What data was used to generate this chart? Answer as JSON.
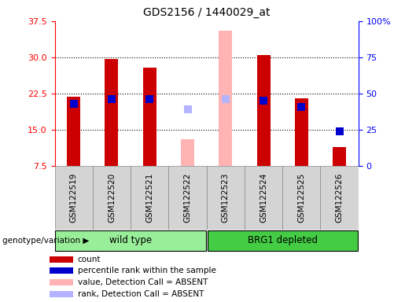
{
  "title": "GDS2156 / 1440029_at",
  "samples": [
    "GSM122519",
    "GSM122520",
    "GSM122521",
    "GSM122522",
    "GSM122523",
    "GSM122524",
    "GSM122525",
    "GSM122526"
  ],
  "absent": [
    "GSM122522",
    "GSM122523"
  ],
  "count_values": [
    21.8,
    29.6,
    27.8,
    13.0,
    35.5,
    30.5,
    21.5,
    11.5
  ],
  "rank_values": [
    43,
    46,
    46,
    39,
    46,
    45,
    41,
    24
  ],
  "ylim_left": [
    7.5,
    37.5
  ],
  "ylim_right": [
    0,
    100
  ],
  "yticks_left": [
    7.5,
    15.0,
    22.5,
    30.0,
    37.5
  ],
  "yticks_right": [
    0,
    25,
    50,
    75,
    100
  ],
  "bar_width": 0.35,
  "bar_color_present": "#cc0000",
  "bar_color_absent": "#ffb3b3",
  "rank_color_present": "#0000cc",
  "rank_color_absent": "#b3b3ff",
  "group_wt_color": "#99ee99",
  "group_brg1_color": "#44cc44",
  "grid_yticks": [
    15.0,
    22.5,
    30.0
  ],
  "bar_bottom": 7.5,
  "legend_items": [
    {
      "label": "count",
      "color": "#cc0000"
    },
    {
      "label": "percentile rank within the sample",
      "color": "#0000cc"
    },
    {
      "label": "value, Detection Call = ABSENT",
      "color": "#ffb3b3"
    },
    {
      "label": "rank, Detection Call = ABSENT",
      "color": "#b3b3ff"
    }
  ]
}
